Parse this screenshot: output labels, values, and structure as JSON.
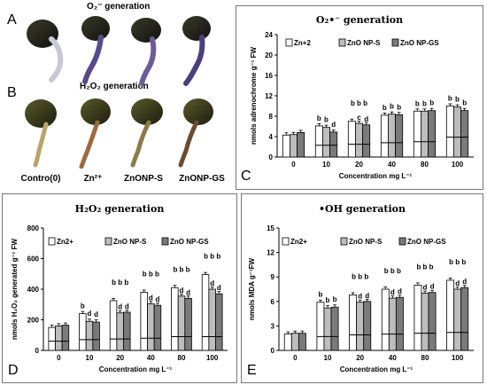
{
  "panel_letters": {
    "a": "A",
    "b": "B",
    "c": "C",
    "d": "D",
    "e": "E"
  },
  "photo": {
    "title_top": "O₂⁻ generation",
    "title_mid": "H₂O₂ generation",
    "captions": [
      "Contro(0)",
      "Zn²⁺",
      "ZnONP-S",
      "ZnONP-GS"
    ]
  },
  "colors": {
    "s1": "#ffffff",
    "s2": "#bdbdbd",
    "s3": "#7a7a7a"
  },
  "chart_data": [
    {
      "id": "C",
      "type": "bar",
      "title": "O₂•⁻ generation",
      "xlabel": "Concentration mg L⁻¹",
      "ylabel": "nmols adrenochrome g⁻¹ FW",
      "categories": [
        "0",
        "10",
        "20",
        "40",
        "80",
        "100"
      ],
      "ylim": [
        0,
        24
      ],
      "yticks": [
        0,
        4,
        8,
        12,
        16,
        20,
        24
      ],
      "series": [
        {
          "name": "Zn+2",
          "values": [
            4.3,
            6.1,
            7.0,
            8.2,
            9.0,
            10.0
          ]
        },
        {
          "name": "ZnO NP-S",
          "values": [
            4.4,
            5.8,
            6.6,
            8.4,
            9.0,
            9.8
          ]
        },
        {
          "name": "ZnO NP-GS",
          "values": [
            4.8,
            4.9,
            6.3,
            8.3,
            9.1,
            9.1
          ]
        }
      ],
      "sig": [
        [],
        [
          "b",
          "b",
          "d"
        ],
        [
          "b b b",
          "c",
          "d"
        ],
        [
          "b",
          "b",
          "b"
        ],
        [
          "b",
          "b",
          "b"
        ],
        [
          "b",
          "b",
          "b"
        ]
      ],
      "inner": [
        null,
        2.3,
        2.5,
        2.8,
        3.0,
        3.9
      ]
    },
    {
      "id": "D",
      "type": "bar",
      "title": "H₂O₂ generation",
      "xlabel": "Concentration mg L⁻¹",
      "ylabel": "nmols H₂O₂ generated g⁻¹ FW",
      "categories": [
        "0",
        "10",
        "20",
        "40",
        "80",
        "100"
      ],
      "ylim": [
        0,
        800
      ],
      "yticks": [
        0,
        200,
        400,
        600,
        800
      ],
      "series": [
        {
          "name": "Zn2+",
          "values": [
            150,
            240,
            325,
            380,
            410,
            495
          ]
        },
        {
          "name": "ZnO NP-S",
          "values": [
            160,
            190,
            245,
            305,
            355,
            400
          ]
        },
        {
          "name": "ZnO NP-GS",
          "values": [
            165,
            185,
            250,
            295,
            340,
            370
          ]
        }
      ],
      "sig": [
        [],
        [
          "b",
          "d",
          "d"
        ],
        [
          "b b b",
          "d",
          "d"
        ],
        [
          "b b b",
          "d",
          "d"
        ],
        [
          "b b b",
          "d",
          "d"
        ],
        [
          "b b b",
          "d",
          "d"
        ]
      ],
      "inner": [
        60,
        70,
        75,
        80,
        90,
        90
      ]
    },
    {
      "id": "E",
      "type": "bar",
      "title": "•OH generation",
      "xlabel": "Concentration mg L⁻¹",
      "ylabel": "nmols MDA g⁻¹FW",
      "categories": [
        "0",
        "10",
        "20",
        "40",
        "80",
        "100"
      ],
      "ylim": [
        0,
        15
      ],
      "yticks": [
        0,
        3,
        6,
        9,
        12,
        15
      ],
      "series": [
        {
          "name": "Zn2+",
          "values": [
            2.0,
            5.9,
            6.8,
            7.5,
            8.0,
            8.6
          ]
        },
        {
          "name": "ZnO NP-S",
          "values": [
            2.1,
            5.2,
            5.9,
            6.4,
            7.0,
            7.5
          ]
        },
        {
          "name": "ZnO NP-GS",
          "values": [
            2.1,
            5.3,
            6.0,
            6.5,
            7.1,
            7.7
          ]
        }
      ],
      "sig": [
        [],
        [
          "b",
          "b",
          "b"
        ],
        [
          "b b b",
          "d",
          "d"
        ],
        [
          "b b b",
          "d",
          "d"
        ],
        [
          "b b b",
          "d",
          "d"
        ],
        [
          "b b b",
          "d",
          "d"
        ]
      ],
      "inner": [
        null,
        1.7,
        1.9,
        2.0,
        2.1,
        2.2
      ]
    }
  ]
}
